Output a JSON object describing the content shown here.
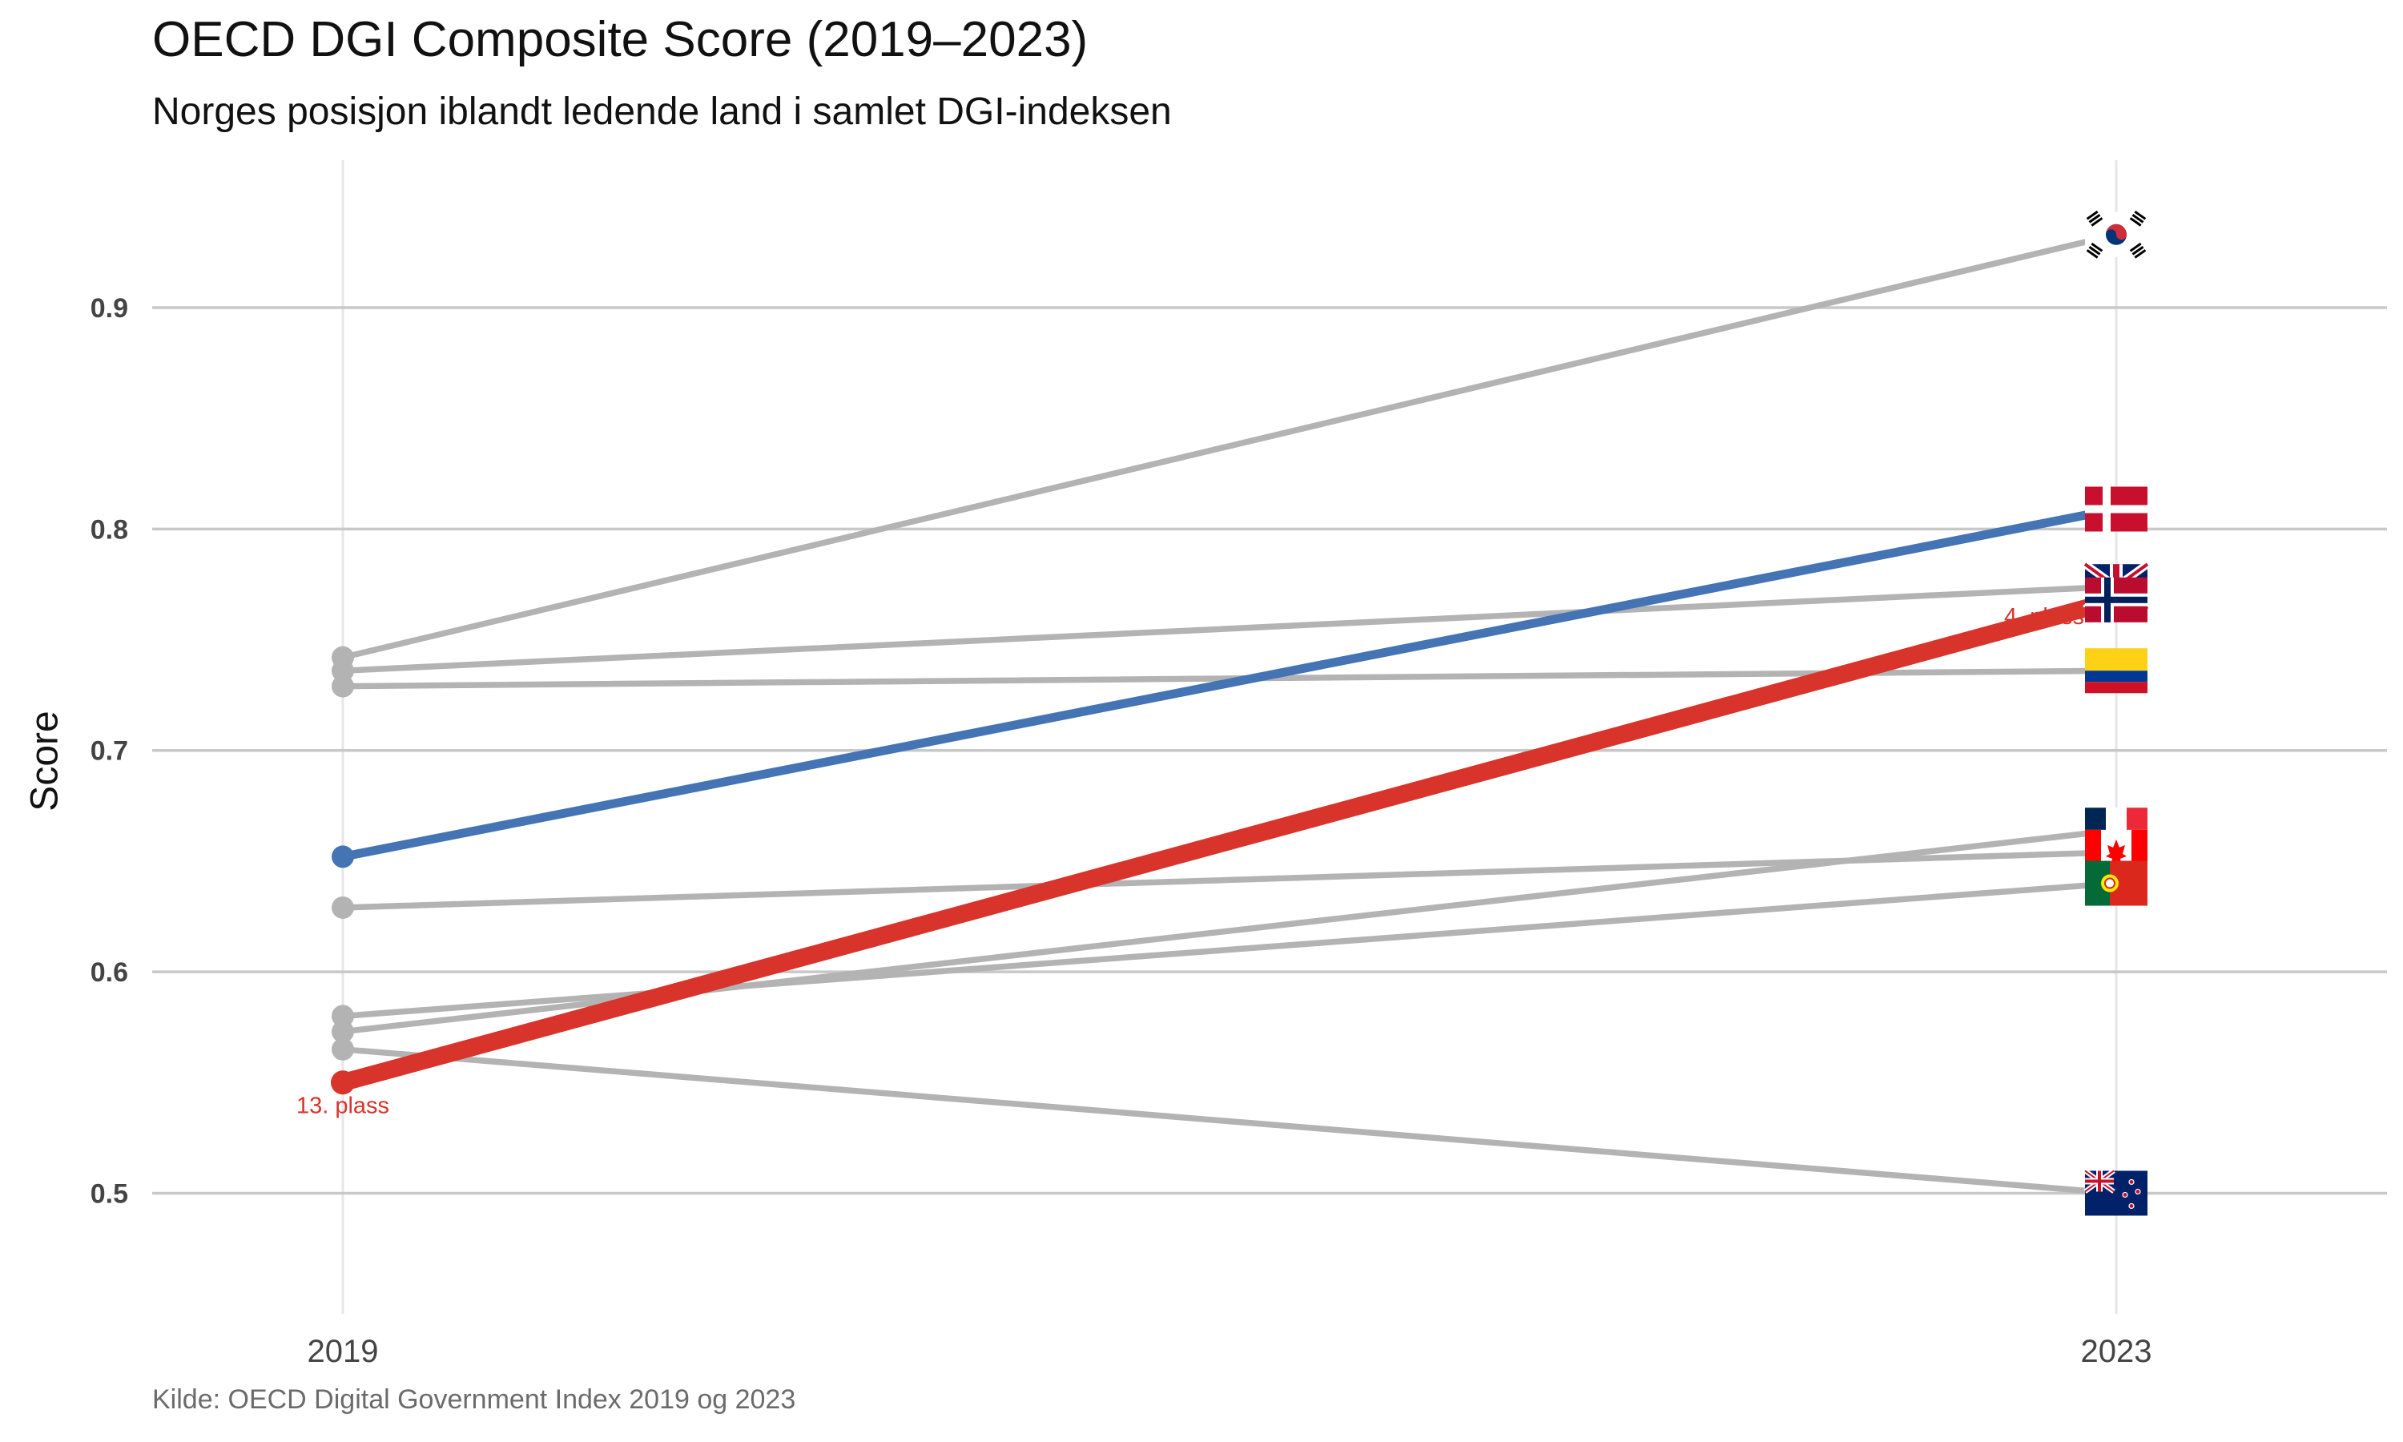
{
  "title": "OECD DGI Composite Score (2019–2023)",
  "subtitle": "Norges posisjon iblandt ledende land i samlet DGI-indeksen",
  "caption": "Kilde: OECD Digital Government Index 2019 og 2023",
  "colors": {
    "norway": "#d9342b",
    "highlight": "#4474b4",
    "other": "#b3b3b3",
    "grid": "#c8c8c8",
    "vgrid": "#e6e6e6"
  },
  "chart_data": {
    "type": "line",
    "title": "OECD DGI Composite Score (2019–2023)",
    "subtitle": "Norges posisjon iblandt ledende land i samlet DGI-indeksen",
    "xlabel": "",
    "ylabel": "Score",
    "x": [
      "2019",
      "2023"
    ],
    "ylim": [
      0.46,
      0.955
    ],
    "yticks": [
      0.5,
      0.6,
      0.7,
      0.8,
      0.9
    ],
    "ytick_labels": [
      "0.5",
      "0.6",
      "0.7",
      "0.8",
      "0.9"
    ],
    "grid": true,
    "legend": "none (flags at 2023 end of each line)",
    "series": [
      {
        "flag": "south-korea",
        "values": [
          0.742,
          0.933
        ],
        "style": "other"
      },
      {
        "flag": "denmark",
        "values": [
          0.652,
          0.809
        ],
        "style": "highlight"
      },
      {
        "flag": "united-kingdom",
        "values": [
          0.736,
          0.774
        ],
        "style": "other"
      },
      {
        "flag": "norway",
        "values": [
          0.55,
          0.768
        ],
        "style": "norway"
      },
      {
        "flag": "colombia",
        "values": [
          0.729,
          0.736
        ],
        "style": "other"
      },
      {
        "flag": "france",
        "values": [
          0.573,
          0.664
        ],
        "style": "other"
      },
      {
        "flag": "canada",
        "values": [
          0.629,
          0.654
        ],
        "style": "other"
      },
      {
        "flag": "portugal",
        "values": [
          0.58,
          0.64
        ],
        "style": "other"
      },
      {
        "flag": "new-zealand",
        "values": [
          0.565,
          0.5
        ],
        "style": "other"
      }
    ],
    "annotations": [
      {
        "text": "13. plass",
        "x": "2019",
        "y": 0.55
      },
      {
        "text": "4. plass",
        "x": "2023",
        "y": 0.768
      }
    ]
  }
}
